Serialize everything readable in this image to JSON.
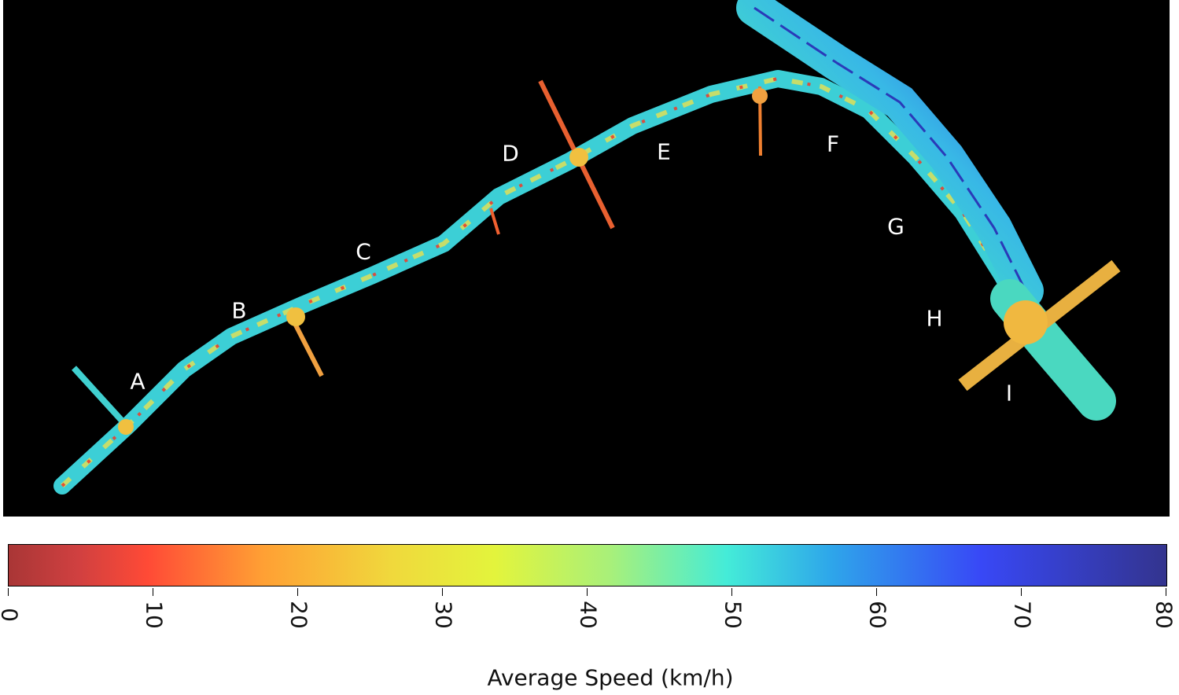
{
  "map": {
    "segment_labels": [
      "A",
      "B",
      "C",
      "D",
      "E",
      "F",
      "G",
      "H",
      "I"
    ]
  },
  "colorbar": {
    "title": "Average Speed (km/h)",
    "ticks": [
      "0",
      "10",
      "20",
      "30",
      "40",
      "50",
      "60",
      "70",
      "80"
    ],
    "min": 0,
    "max": 80,
    "colors": [
      "#a93636",
      "#ff4a36",
      "#ffa034",
      "#f0d83c",
      "#e3f43c",
      "#a8f07a",
      "#44ecd8",
      "#2ea6ea",
      "#3848f6",
      "#33348e"
    ]
  }
}
